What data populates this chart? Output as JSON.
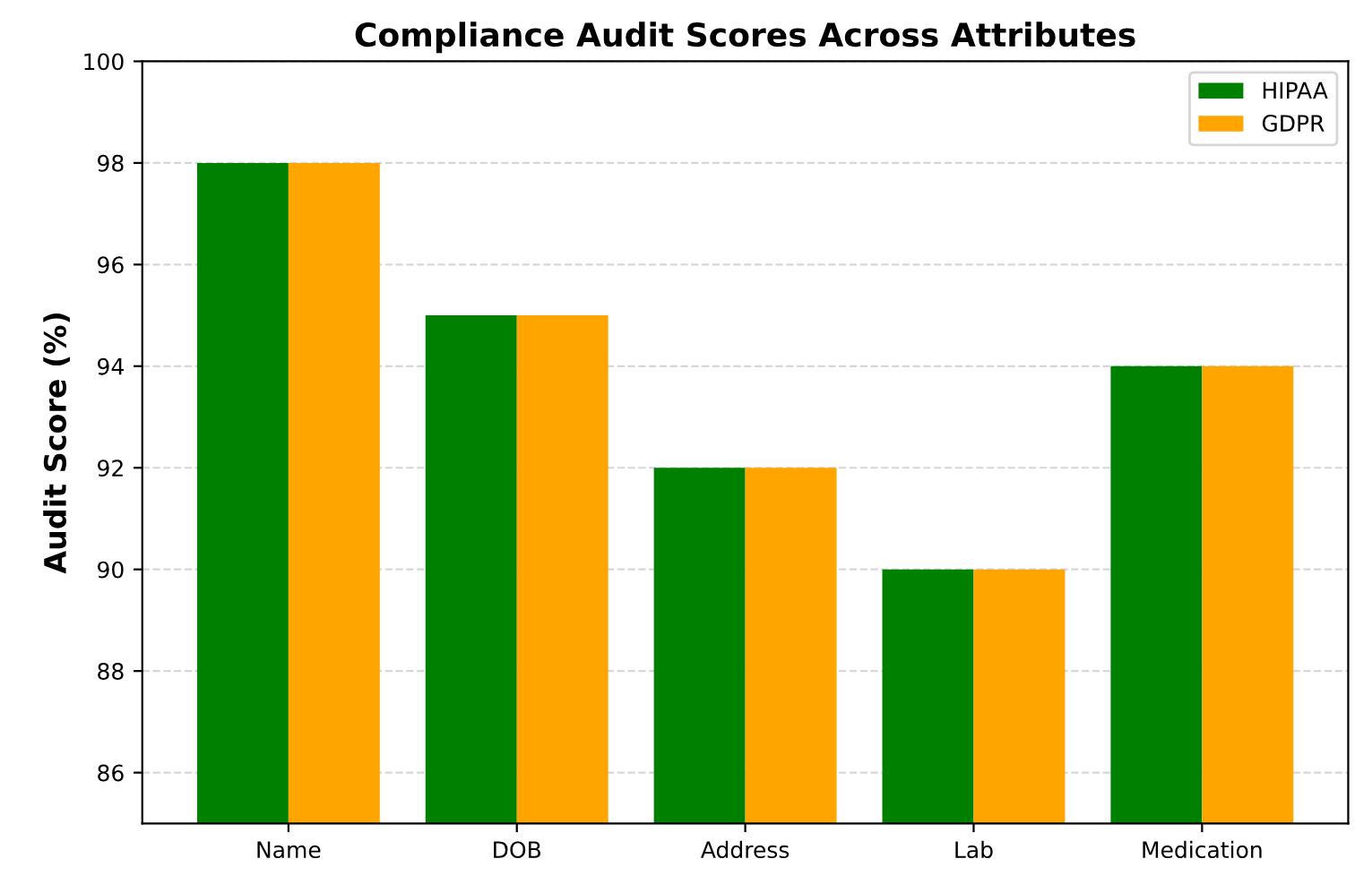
{
  "chart_data": {
    "type": "bar",
    "title": "Compliance Audit Scores Across Attributes",
    "ylabel": "Audit Score (%)",
    "categories": [
      "Name",
      "DOB",
      "Address",
      "Lab",
      "Medication"
    ],
    "series": [
      {
        "name": "HIPAA",
        "color": "#008000",
        "values": [
          98,
          95,
          92,
          90,
          94
        ]
      },
      {
        "name": "GDPR",
        "color": "#ffa500",
        "values": [
          98,
          95,
          92,
          90,
          94
        ]
      }
    ],
    "ylim": [
      85,
      100
    ],
    "yticks": [
      86,
      88,
      90,
      92,
      94,
      96,
      98,
      100
    ],
    "grid": "y",
    "legend": "top right"
  }
}
